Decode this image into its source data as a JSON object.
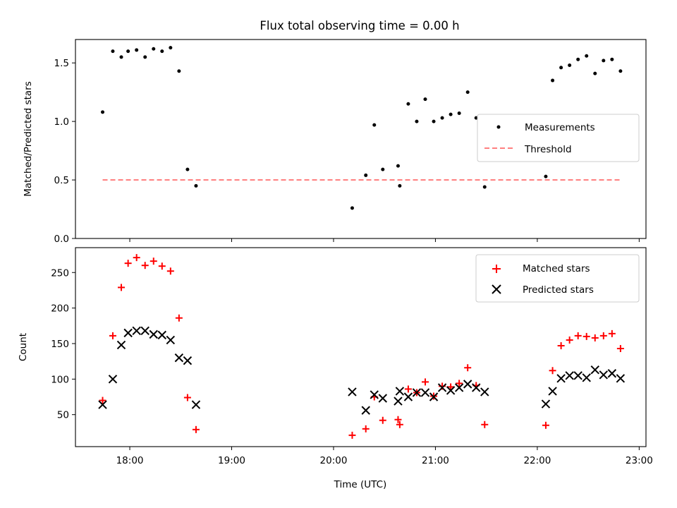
{
  "chart_data": [
    {
      "type": "scatter",
      "title": "Flux total observing time = 0.00 h",
      "ylabel": "Matched/Predicted stars",
      "xlim": [
        "17:28",
        "23:04"
      ],
      "ylim": [
        0,
        1.7
      ],
      "yticks": [
        0.0,
        0.5,
        1.0,
        1.5
      ],
      "ytick_labels": [
        "0.0",
        "0.5",
        "1.0",
        "1.5"
      ],
      "legend_position": "center-right",
      "series": [
        {
          "name": "Measurements",
          "color": "#000000",
          "marker": "dot",
          "points": [
            [
              "17:44",
              1.08
            ],
            [
              "17:50",
              1.6
            ],
            [
              "17:55",
              1.55
            ],
            [
              "17:59",
              1.6
            ],
            [
              "18:04",
              1.61
            ],
            [
              "18:09",
              1.55
            ],
            [
              "18:14",
              1.62
            ],
            [
              "18:19",
              1.6
            ],
            [
              "18:24",
              1.63
            ],
            [
              "18:29",
              1.43
            ],
            [
              "18:34",
              0.59
            ],
            [
              "18:39",
              0.45
            ],
            [
              "20:11",
              0.26
            ],
            [
              "20:19",
              0.54
            ],
            [
              "20:24",
              0.97
            ],
            [
              "20:29",
              0.59
            ],
            [
              "20:38",
              0.62
            ],
            [
              "20:39",
              0.45
            ],
            [
              "20:44",
              1.15
            ],
            [
              "20:49",
              1.0
            ],
            [
              "20:54",
              1.19
            ],
            [
              "20:59",
              1.0
            ],
            [
              "21:04",
              1.03
            ],
            [
              "21:09",
              1.06
            ],
            [
              "21:14",
              1.07
            ],
            [
              "21:19",
              1.25
            ],
            [
              "21:24",
              1.03
            ],
            [
              "21:29",
              0.44
            ],
            [
              "22:05",
              0.53
            ],
            [
              "22:09",
              1.35
            ],
            [
              "22:14",
              1.46
            ],
            [
              "22:19",
              1.48
            ],
            [
              "22:24",
              1.53
            ],
            [
              "22:29",
              1.56
            ],
            [
              "22:34",
              1.41
            ],
            [
              "22:39",
              1.52
            ],
            [
              "22:44",
              1.53
            ],
            [
              "22:49",
              1.43
            ]
          ]
        },
        {
          "name": "Threshold",
          "color": "#ff8080",
          "style": "dashed-line",
          "points": [
            [
              "17:44",
              0.5
            ],
            [
              "22:49",
              0.5
            ]
          ]
        }
      ]
    },
    {
      "type": "scatter",
      "xlabel": "Time (UTC)",
      "ylabel": "Count",
      "xlim": [
        "17:28",
        "23:04"
      ],
      "ylim": [
        5,
        285
      ],
      "xticks": [
        "18:00",
        "19:00",
        "20:00",
        "21:00",
        "22:00",
        "23:00"
      ],
      "yticks": [
        50,
        100,
        150,
        200,
        250
      ],
      "ytick_labels": [
        "50",
        "100",
        "150",
        "200",
        "250"
      ],
      "legend_position": "top-right",
      "series": [
        {
          "name": "Matched stars",
          "color": "#ff0000",
          "marker": "plus",
          "points": [
            [
              "17:44",
              70
            ],
            [
              "17:50",
              161
            ],
            [
              "17:55",
              229
            ],
            [
              "17:59",
              263
            ],
            [
              "18:04",
              271
            ],
            [
              "18:09",
              260
            ],
            [
              "18:14",
              266
            ],
            [
              "18:19",
              259
            ],
            [
              "18:24",
              252
            ],
            [
              "18:29",
              186
            ],
            [
              "18:34",
              74
            ],
            [
              "18:39",
              29
            ],
            [
              "20:11",
              21
            ],
            [
              "20:19",
              30
            ],
            [
              "20:24",
              75
            ],
            [
              "20:29",
              42
            ],
            [
              "20:38",
              43
            ],
            [
              "20:39",
              36
            ],
            [
              "20:44",
              86
            ],
            [
              "20:49",
              81
            ],
            [
              "20:54",
              96
            ],
            [
              "20:59",
              76
            ],
            [
              "21:04",
              90
            ],
            [
              "21:09",
              89
            ],
            [
              "21:14",
              94
            ],
            [
              "21:19",
              116
            ],
            [
              "21:24",
              91
            ],
            [
              "21:29",
              36
            ],
            [
              "22:05",
              35
            ],
            [
              "22:09",
              112
            ],
            [
              "22:14",
              147
            ],
            [
              "22:19",
              155
            ],
            [
              "22:24",
              161
            ],
            [
              "22:29",
              160
            ],
            [
              "22:34",
              158
            ],
            [
              "22:39",
              161
            ],
            [
              "22:44",
              164
            ],
            [
              "22:49",
              143
            ]
          ]
        },
        {
          "name": "Predicted stars",
          "color": "#000000",
          "marker": "x",
          "points": [
            [
              "17:44",
              64
            ],
            [
              "17:50",
              100
            ],
            [
              "17:55",
              148
            ],
            [
              "17:59",
              165
            ],
            [
              "18:04",
              168
            ],
            [
              "18:09",
              168
            ],
            [
              "18:14",
              163
            ],
            [
              "18:19",
              162
            ],
            [
              "18:24",
              155
            ],
            [
              "18:29",
              130
            ],
            [
              "18:34",
              126
            ],
            [
              "18:39",
              64
            ],
            [
              "20:11",
              82
            ],
            [
              "20:19",
              56
            ],
            [
              "20:24",
              78
            ],
            [
              "20:29",
              73
            ],
            [
              "20:38",
              69
            ],
            [
              "20:39",
              83
            ],
            [
              "20:44",
              75
            ],
            [
              "20:49",
              81
            ],
            [
              "20:54",
              81
            ],
            [
              "20:59",
              75
            ],
            [
              "21:04",
              88
            ],
            [
              "21:09",
              84
            ],
            [
              "21:14",
              88
            ],
            [
              "21:19",
              93
            ],
            [
              "21:24",
              88
            ],
            [
              "21:29",
              82
            ],
            [
              "22:05",
              65
            ],
            [
              "22:09",
              83
            ],
            [
              "22:14",
              101
            ],
            [
              "22:19",
              105
            ],
            [
              "22:24",
              105
            ],
            [
              "22:29",
              102
            ],
            [
              "22:34",
              113
            ],
            [
              "22:39",
              106
            ],
            [
              "22:44",
              108
            ],
            [
              "22:49",
              101
            ]
          ]
        }
      ]
    }
  ]
}
